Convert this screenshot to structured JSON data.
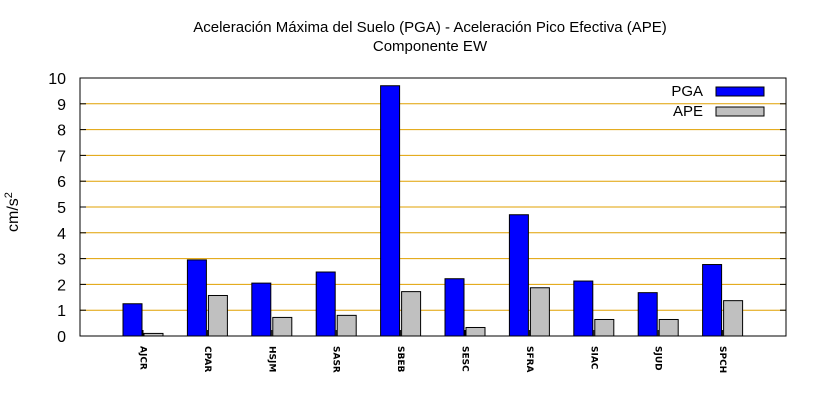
{
  "chart_data": {
    "type": "bar",
    "title": "Aceleración Máxima del Suelo (PGA) -  Aceleración Pico Efectiva (APE)",
    "subtitle": "Componente EW",
    "ylabel": "cm/s",
    "ylabel_superscript": "2",
    "ylim": [
      0,
      10
    ],
    "yticks": [
      "0",
      "1",
      "2",
      "3",
      "4",
      "5",
      "6",
      "7",
      "8",
      "9",
      "10"
    ],
    "grid": true,
    "legend_position": "top-right",
    "categories": [
      "AJCR",
      "CPAR",
      "HSJM",
      "SASR",
      "SBEB",
      "SESC",
      "SFRA",
      "SIAC",
      "SJUD",
      "SPCH"
    ],
    "series": [
      {
        "name": "PGA",
        "color": "#0000ff",
        "values": [
          1.25,
          2.95,
          2.05,
          2.48,
          9.7,
          2.22,
          4.7,
          2.13,
          1.68,
          2.77
        ]
      },
      {
        "name": "APE",
        "color": "#c0c0c0",
        "values": [
          0.1,
          1.57,
          0.72,
          0.8,
          1.72,
          0.33,
          1.87,
          0.64,
          0.64,
          1.37
        ]
      }
    ]
  }
}
